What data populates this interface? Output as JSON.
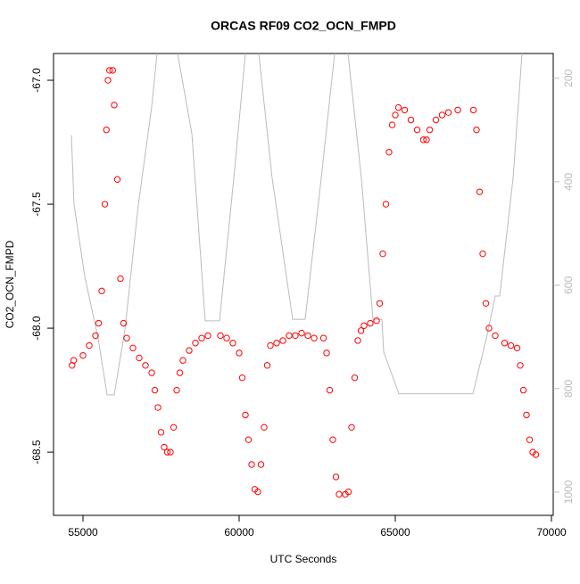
{
  "chart_data": {
    "type": "scatter",
    "title": "ORCAS RF09 CO2_OCN_FMPD",
    "xlabel": "UTC Seconds",
    "ylabel": "CO2_OCN_FMPD",
    "xlim": [
      54057,
      70057
    ],
    "xticks": [
      55000,
      60000,
      65000,
      70000
    ],
    "ylim": [
      -68.755,
      -66.892
    ],
    "yticks": [
      {
        "value": -67,
        "label": "-67.0"
      },
      -67.5,
      {
        "value": -68,
        "label": "-68.0"
      },
      -68.5
    ],
    "y2lim": [
      1045,
      152
    ],
    "y2ticks": [
      200,
      400,
      600,
      800,
      1000
    ],
    "y2color": "#bbbbbb",
    "series": [
      {
        "type": "scatter",
        "color": "#ff0000",
        "x": [
          54650,
          54700,
          55000,
          55200,
          55400,
          55500,
          55600,
          55700,
          55750,
          55800,
          55850,
          55950,
          56000,
          56100,
          56200,
          56300,
          56400,
          56600,
          56800,
          57000,
          57200,
          57300,
          57400,
          57500,
          57600,
          57700,
          57800,
          57900,
          58000,
          58100,
          58200,
          58400,
          58600,
          58800,
          59000,
          59400,
          59600,
          59800,
          60000,
          60100,
          60200,
          60300,
          60400,
          60500,
          60600,
          60700,
          60800,
          60900,
          61000,
          61200,
          61400,
          61600,
          61800,
          62000,
          62200,
          62400,
          62700,
          62800,
          62900,
          63000,
          63100,
          63200,
          63400,
          63500,
          63600,
          63700,
          63800,
          63900,
          64000,
          64200,
          64400,
          64500,
          64600,
          64700,
          64800,
          64900,
          65000,
          65100,
          65300,
          65500,
          65700,
          65900,
          66000,
          66100,
          66300,
          66500,
          66700,
          67000,
          67500,
          67600,
          67700,
          67800,
          67900,
          68000,
          68200,
          68500,
          68700,
          68900,
          69000,
          69100,
          69200,
          69300,
          69400,
          69500
        ],
        "values": [
          -68.15,
          -68.13,
          -68.11,
          -68.07,
          -68.03,
          -67.98,
          -67.85,
          -67.5,
          -67.2,
          -67.0,
          -66.96,
          -66.96,
          -67.1,
          -67.4,
          -67.8,
          -67.98,
          -68.04,
          -68.08,
          -68.12,
          -68.15,
          -68.18,
          -68.25,
          -68.32,
          -68.42,
          -68.48,
          -68.5,
          -68.5,
          -68.4,
          -68.25,
          -68.18,
          -68.13,
          -68.09,
          -68.06,
          -68.04,
          -68.03,
          -68.03,
          -68.04,
          -68.06,
          -68.1,
          -68.2,
          -68.35,
          -68.45,
          -68.55,
          -68.65,
          -68.66,
          -68.55,
          -68.4,
          -68.15,
          -68.07,
          -68.06,
          -68.05,
          -68.03,
          -68.03,
          -68.02,
          -68.03,
          -68.04,
          -68.04,
          -68.1,
          -68.25,
          -68.45,
          -68.6,
          -68.67,
          -68.67,
          -68.66,
          -68.4,
          -68.2,
          -68.05,
          -68.01,
          -67.99,
          -67.98,
          -67.97,
          -67.9,
          -67.7,
          -67.5,
          -67.29,
          -67.18,
          -67.14,
          -67.11,
          -67.12,
          -67.16,
          -67.2,
          -67.24,
          -67.24,
          -67.2,
          -67.16,
          -67.14,
          -67.13,
          -67.12,
          -67.12,
          -67.2,
          -67.45,
          -67.7,
          -67.9,
          -68.0,
          -68.03,
          -68.06,
          -68.07,
          -68.08,
          -68.15,
          -68.25,
          -68.35,
          -68.45,
          -68.5,
          -68.51
        ]
      },
      {
        "type": "line",
        "axis": "y2",
        "color": "#bbbbbb",
        "x": [
          54629,
          54714,
          55057,
          55486,
          55771,
          56000,
          56343,
          56771,
          57200,
          57371,
          57400,
          58000,
          58029,
          58486,
          58914,
          59371,
          59829,
          60200,
          60400,
          60600,
          60629,
          61057,
          61714,
          62114,
          62629,
          63057,
          63200,
          63400,
          63486,
          63914,
          64286,
          64571,
          64629,
          65114,
          67486,
          67914,
          68200,
          68343,
          68771,
          69057
        ],
        "values": [
          310,
          445,
          583,
          703,
          812,
          812,
          686,
          445,
          255,
          152,
          null,
          null,
          152,
          307,
          669,
          669,
          393,
          152,
          null,
          null,
          152,
          393,
          666,
          666,
          393,
          152,
          null,
          null,
          152,
          393,
          666,
          666,
          729,
          810,
          810,
          703,
          621,
          621,
          393,
          152
        ]
      }
    ]
  }
}
